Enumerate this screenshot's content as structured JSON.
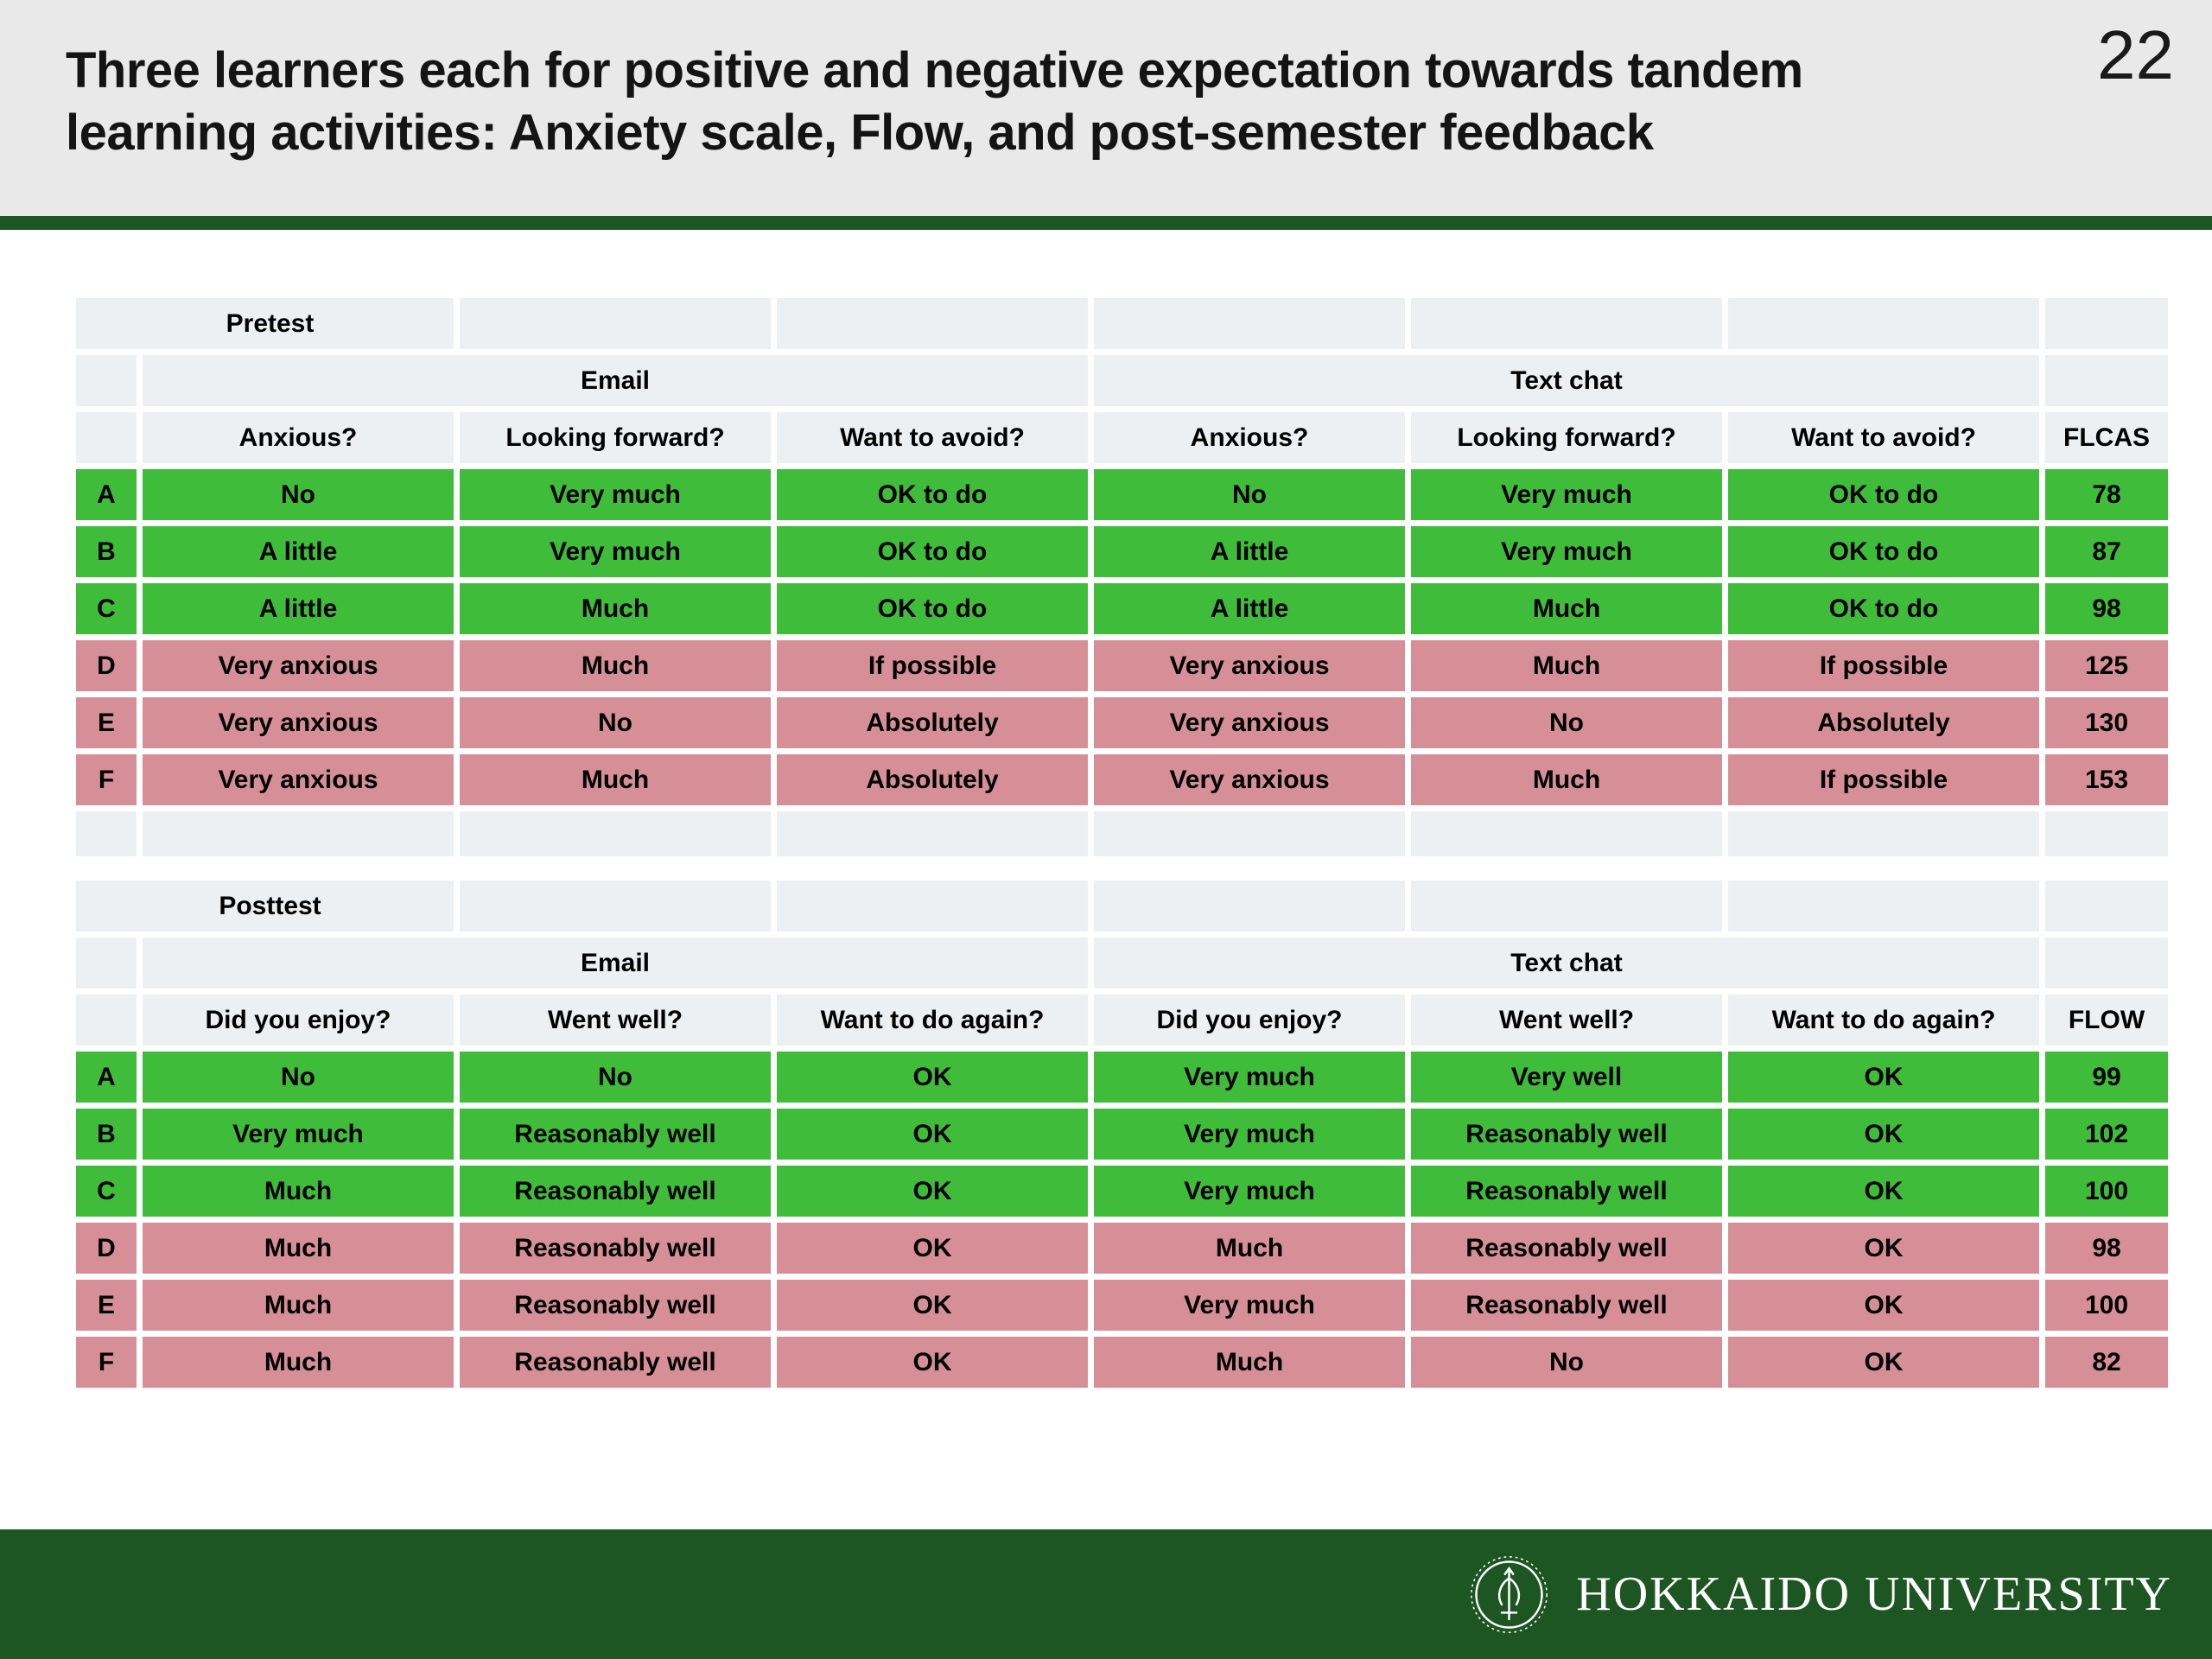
{
  "slide": {
    "number": "22",
    "title_line1": "Three learners each for positive and negative expectation towards tandem",
    "title_line2": "learning activities: Anxiety scale, Flow, and post-semester feedback"
  },
  "pretest": {
    "label": "Pretest",
    "groups": [
      "Email",
      "Text chat"
    ],
    "columns": [
      "Anxious?",
      "Looking forward?",
      "Want to avoid?",
      "Anxious?",
      "Looking forward?",
      "Want to avoid?",
      "FLCAS"
    ],
    "rows": [
      {
        "id": "A",
        "tone": "positive",
        "cells": [
          "No",
          "Very much",
          "OK to do",
          "No",
          "Very much",
          "OK to do",
          "78"
        ]
      },
      {
        "id": "B",
        "tone": "positive",
        "cells": [
          "A little",
          "Very much",
          "OK to do",
          "A little",
          "Very much",
          "OK to do",
          "87"
        ]
      },
      {
        "id": "C",
        "tone": "positive",
        "cells": [
          "A little",
          "Much",
          "OK to do",
          "A little",
          "Much",
          "OK to do",
          "98"
        ]
      },
      {
        "id": "D",
        "tone": "negative",
        "cells": [
          "Very anxious",
          "Much",
          "If possible",
          "Very anxious",
          "Much",
          "If possible",
          "125"
        ]
      },
      {
        "id": "E",
        "tone": "negative",
        "cells": [
          "Very anxious",
          "No",
          "Absolutely",
          "Very anxious",
          "No",
          "Absolutely",
          "130"
        ]
      },
      {
        "id": "F",
        "tone": "negative",
        "cells": [
          "Very anxious",
          "Much",
          "Absolutely",
          "Very anxious",
          "Much",
          "If possible",
          "153"
        ]
      }
    ],
    "spacer": true
  },
  "posttest": {
    "label": "Posttest",
    "groups": [
      "Email",
      "Text chat"
    ],
    "columns": [
      "Did you enjoy?",
      "Went well?",
      "Want to do again?",
      "Did you enjoy?",
      "Went well?",
      "Want to do again?",
      "FLOW"
    ],
    "rows": [
      {
        "id": "A",
        "tone": "positive",
        "cells": [
          "No",
          "No",
          "OK",
          "Very much",
          "Very well",
          "OK",
          "99"
        ]
      },
      {
        "id": "B",
        "tone": "positive",
        "cells": [
          "Very much",
          "Reasonably well",
          "OK",
          "Very much",
          "Reasonably well",
          "OK",
          "102"
        ]
      },
      {
        "id": "C",
        "tone": "positive",
        "cells": [
          "Much",
          "Reasonably well",
          "OK",
          "Very much",
          "Reasonably well",
          "OK",
          "100"
        ]
      },
      {
        "id": "D",
        "tone": "negative",
        "cells": [
          "Much",
          "Reasonably well",
          "OK",
          "Much",
          "Reasonably well",
          "OK",
          "98"
        ]
      },
      {
        "id": "E",
        "tone": "negative",
        "cells": [
          "Much",
          "Reasonably well",
          "OK",
          "Very much",
          "Reasonably well",
          "OK",
          "100"
        ]
      },
      {
        "id": "F",
        "tone": "negative",
        "cells": [
          "Much",
          "Reasonably well",
          "OK",
          "Much",
          "No",
          "OK",
          "82"
        ]
      }
    ],
    "spacer": false
  },
  "footer": {
    "university": "HOKKAIDO UNIVERSITY"
  },
  "colors": {
    "positive_row": "#3fbd3a",
    "negative_row": "#d78f97",
    "header_band": "#edf0f3",
    "accent_green": "#1d5622",
    "header_background": "#e9e9e9"
  }
}
